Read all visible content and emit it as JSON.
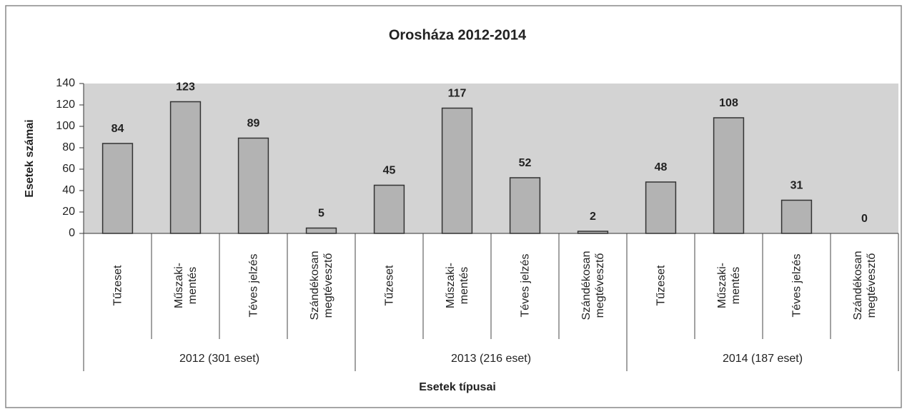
{
  "chart_data": {
    "type": "bar",
    "title": "Orosháza 2012-2014",
    "ylabel": "Esetek számai",
    "xlabel": "Esetek típusai",
    "categories": [
      "Tűzeset",
      "Műszaki-\nmentés",
      "Téves jelzés",
      "Szándékosan\nmegtévesztő",
      "Tűzeset",
      "Műszaki-\nmentés",
      "Téves jelzés",
      "Szándékosan\nmegtévesztő",
      "Tűzeset",
      "Műszaki-\nmentés",
      "Téves jelzés",
      "Szándékosan\nmegtévesztő"
    ],
    "groups": [
      "2012 (301 eset)",
      "2013 (216 eset)",
      "2014 (187 eset)"
    ],
    "values": [
      84,
      123,
      89,
      5,
      45,
      117,
      52,
      2,
      48,
      108,
      31,
      0
    ],
    "color": "#b3b3b3",
    "plot_background": "#d3d3d3",
    "ylim": [
      0,
      140
    ],
    "yticks": [
      0,
      20,
      40,
      60,
      80,
      100,
      120,
      140
    ]
  }
}
